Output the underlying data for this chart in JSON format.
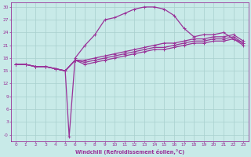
{
  "xlabel": "Windchill (Refroidissement éolien,°C)",
  "xlim": [
    -0.5,
    23.5
  ],
  "ylim": [
    -1.5,
    31
  ],
  "xticks": [
    0,
    1,
    2,
    3,
    4,
    5,
    6,
    7,
    8,
    9,
    10,
    11,
    12,
    13,
    14,
    15,
    16,
    17,
    18,
    19,
    20,
    21,
    22,
    23
  ],
  "yticks": [
    0,
    3,
    6,
    9,
    12,
    15,
    18,
    21,
    24,
    27,
    30
  ],
  "bg_color": "#c8eae8",
  "grid_color": "#a8d0ce",
  "line_color": "#993399",
  "line_width": 0.9,
  "marker_size": 2.8,
  "line1_x": [
    0,
    1,
    2,
    3,
    4,
    5,
    5.4,
    6,
    7,
    8,
    9,
    10,
    11,
    12,
    13,
    14,
    15,
    16,
    17,
    18,
    19,
    20,
    21,
    22,
    23
  ],
  "line1_y": [
    16.5,
    16.5,
    16.0,
    16.0,
    15.5,
    15.0,
    -0.5,
    18.0,
    21.0,
    23.5,
    27.0,
    27.5,
    28.5,
    29.5,
    30.0,
    30.0,
    29.5,
    28.0,
    25.0,
    23.0,
    23.5,
    23.5,
    24.0,
    22.5,
    21.5
  ],
  "line2_x": [
    0,
    1,
    2,
    3,
    4,
    5,
    6,
    7,
    8,
    9,
    10,
    11,
    12,
    13,
    14,
    15,
    16,
    17,
    18,
    19,
    20,
    21,
    22,
    23
  ],
  "line2_y": [
    16.5,
    16.5,
    16.0,
    16.0,
    15.5,
    15.0,
    17.5,
    17.5,
    18.0,
    18.5,
    19.0,
    19.5,
    20.0,
    20.5,
    21.0,
    21.5,
    21.5,
    22.0,
    22.5,
    22.5,
    23.0,
    23.0,
    23.5,
    22.0
  ],
  "line3_x": [
    0,
    1,
    2,
    3,
    4,
    5,
    6,
    7,
    8,
    9,
    10,
    11,
    12,
    13,
    14,
    15,
    16,
    17,
    18,
    19,
    20,
    21,
    22,
    23
  ],
  "line3_y": [
    16.5,
    16.5,
    16.0,
    16.0,
    15.5,
    15.0,
    17.5,
    17.0,
    17.5,
    18.0,
    18.5,
    19.0,
    19.5,
    20.0,
    20.5,
    20.5,
    21.0,
    21.5,
    22.0,
    22.0,
    22.5,
    22.5,
    23.0,
    21.5
  ],
  "line4_x": [
    0,
    1,
    2,
    3,
    4,
    5,
    6,
    7,
    8,
    9,
    10,
    11,
    12,
    13,
    14,
    15,
    16,
    17,
    18,
    19,
    20,
    21,
    22,
    23
  ],
  "line4_y": [
    16.5,
    16.5,
    16.0,
    16.0,
    15.5,
    15.0,
    17.5,
    16.5,
    17.0,
    17.5,
    18.0,
    18.5,
    19.0,
    19.5,
    20.0,
    20.0,
    20.5,
    21.0,
    21.5,
    21.5,
    22.0,
    22.0,
    22.5,
    21.0
  ]
}
